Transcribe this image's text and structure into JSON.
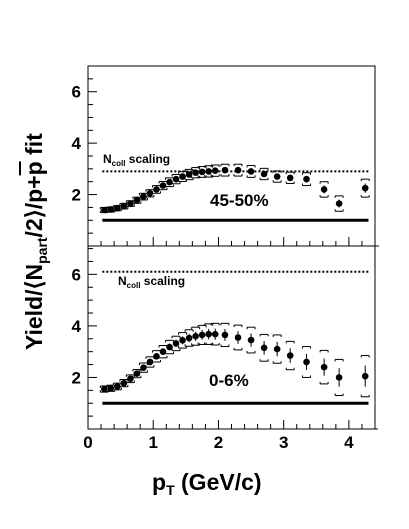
{
  "chart_data": [
    {
      "type": "scatter",
      "panel": "top",
      "ylim": [
        0,
        7
      ],
      "xlim": [
        0,
        4.4
      ],
      "yticks": [
        "2",
        "4",
        "6"
      ],
      "centrality_label": "45-50%",
      "ncoll": {
        "label_main": "N",
        "label_sub": "coll",
        "label_rest": " scaling",
        "value": 2.9
      },
      "reference_line": 1.0,
      "series": [
        {
          "x": [
            0.25,
            0.35,
            0.45,
            0.55,
            0.65,
            0.75,
            0.85,
            0.95,
            1.05,
            1.15,
            1.25,
            1.35,
            1.45,
            1.55,
            1.65,
            1.75,
            1.85,
            1.95,
            2.1,
            2.3,
            2.5,
            2.7,
            2.9,
            3.1,
            3.35,
            3.62,
            3.85,
            4.25
          ],
          "y": [
            1.4,
            1.42,
            1.47,
            1.55,
            1.65,
            1.78,
            1.92,
            2.05,
            2.2,
            2.35,
            2.48,
            2.6,
            2.7,
            2.78,
            2.85,
            2.88,
            2.9,
            2.93,
            2.95,
            2.95,
            2.9,
            2.8,
            2.7,
            2.65,
            2.6,
            2.2,
            1.65,
            2.25
          ],
          "err": [
            0.1,
            0.1,
            0.1,
            0.11,
            0.11,
            0.12,
            0.13,
            0.14,
            0.15,
            0.16,
            0.17,
            0.18,
            0.19,
            0.2,
            0.2,
            0.21,
            0.22,
            0.22,
            0.23,
            0.23,
            0.23,
            0.22,
            0.22,
            0.22,
            0.25,
            0.3,
            0.3,
            0.35
          ]
        }
      ]
    },
    {
      "type": "scatter",
      "panel": "bottom",
      "ylim": [
        0,
        7.1
      ],
      "xlim": [
        0,
        4.4
      ],
      "yticks": [
        "2",
        "4",
        "6"
      ],
      "xticks": [
        "0",
        "1",
        "2",
        "3",
        "4"
      ],
      "centrality_label": "0-6%",
      "ncoll": {
        "label_main": "N",
        "label_sub": "coll",
        "label_rest": " scaling",
        "value": 6.1
      },
      "reference_line": 1.0,
      "series": [
        {
          "x": [
            0.25,
            0.35,
            0.45,
            0.55,
            0.65,
            0.75,
            0.85,
            0.95,
            1.05,
            1.15,
            1.25,
            1.35,
            1.45,
            1.55,
            1.65,
            1.75,
            1.85,
            1.95,
            2.1,
            2.3,
            2.5,
            2.7,
            2.9,
            3.1,
            3.35,
            3.62,
            3.85,
            4.25
          ],
          "y": [
            1.55,
            1.58,
            1.65,
            1.78,
            1.95,
            2.15,
            2.38,
            2.6,
            2.82,
            3.0,
            3.18,
            3.32,
            3.44,
            3.53,
            3.6,
            3.65,
            3.68,
            3.68,
            3.65,
            3.55,
            3.45,
            3.15,
            3.1,
            2.85,
            2.6,
            2.4,
            2.0,
            2.05
          ],
          "err": [
            0.12,
            0.12,
            0.13,
            0.14,
            0.15,
            0.16,
            0.18,
            0.2,
            0.22,
            0.24,
            0.26,
            0.28,
            0.3,
            0.32,
            0.35,
            0.37,
            0.4,
            0.42,
            0.45,
            0.48,
            0.5,
            0.52,
            0.55,
            0.55,
            0.6,
            0.65,
            0.7,
            0.8
          ]
        }
      ]
    }
  ],
  "axes": {
    "xlabel_main": "p",
    "xlabel_sub": "T",
    "xlabel_rest": " (GeV/c)",
    "ylabel_a": "Yield/",
    "ylabel_lang": "⟨",
    "ylabel_n": "N",
    "ylabel_part": "part",
    "ylabel_b": "/2",
    "ylabel_rang": "⟩",
    "ylabel_c": "/p+",
    "ylabel_pbar": "p",
    "ylabel_d": " fit"
  },
  "colors": {
    "axis": "#000000",
    "marker": "#000000",
    "ncoll_line": "#000000"
  }
}
